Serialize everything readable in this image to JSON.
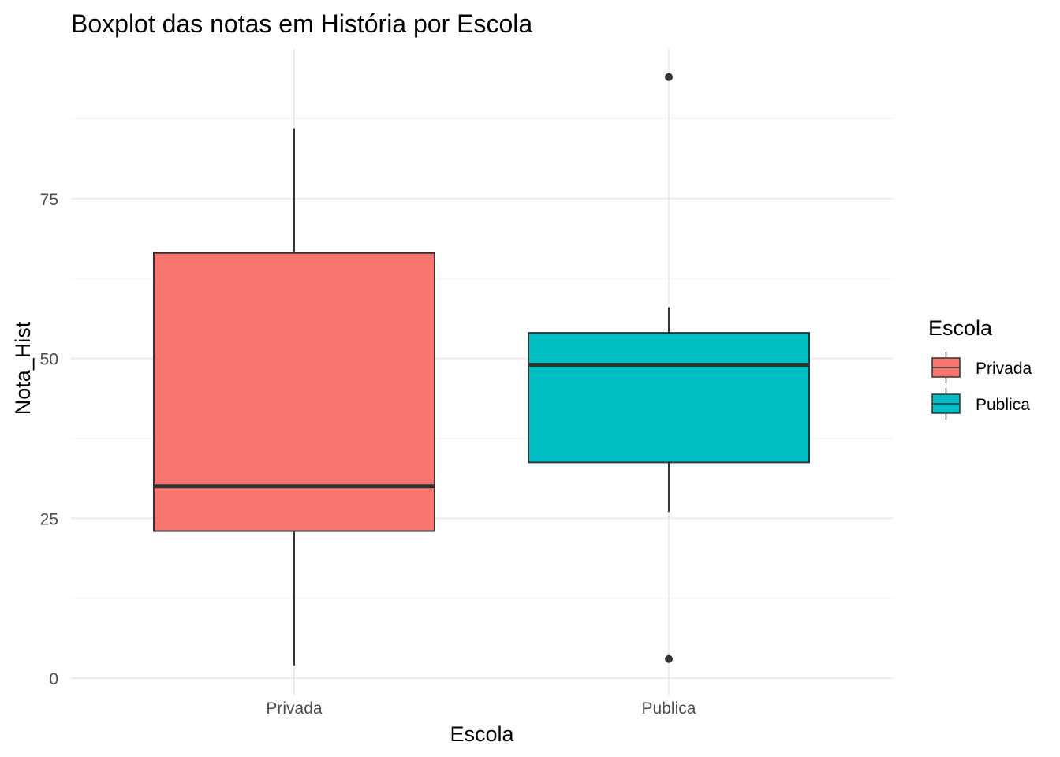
{
  "chart_data": {
    "type": "boxplot",
    "title": "Boxplot das notas em História por Escola",
    "xlabel": "Escola",
    "ylabel": "Nota_Hist",
    "categories": [
      "Privada",
      "Publica"
    ],
    "yticks": [
      0,
      25,
      50,
      75
    ],
    "ylim": [
      -2.7,
      98.4
    ],
    "grid": true,
    "boxes": [
      {
        "category": "Privada",
        "whisker_low": 2,
        "q1": 23,
        "median": 30,
        "q3": 66.5,
        "whisker_high": 86,
        "outliers": [],
        "color": "#F8766D"
      },
      {
        "category": "Publica",
        "whisker_low": 26,
        "q1": 33.75,
        "median": 49,
        "q3": 54,
        "whisker_high": 58,
        "outliers": [
          94,
          3
        ],
        "color": "#00BFC4"
      }
    ],
    "legend": {
      "title": "Escola",
      "position": "right",
      "entries": [
        {
          "label": "Privada",
          "color": "#F8766D"
        },
        {
          "label": "Publica",
          "color": "#00BFC4"
        }
      ]
    }
  }
}
